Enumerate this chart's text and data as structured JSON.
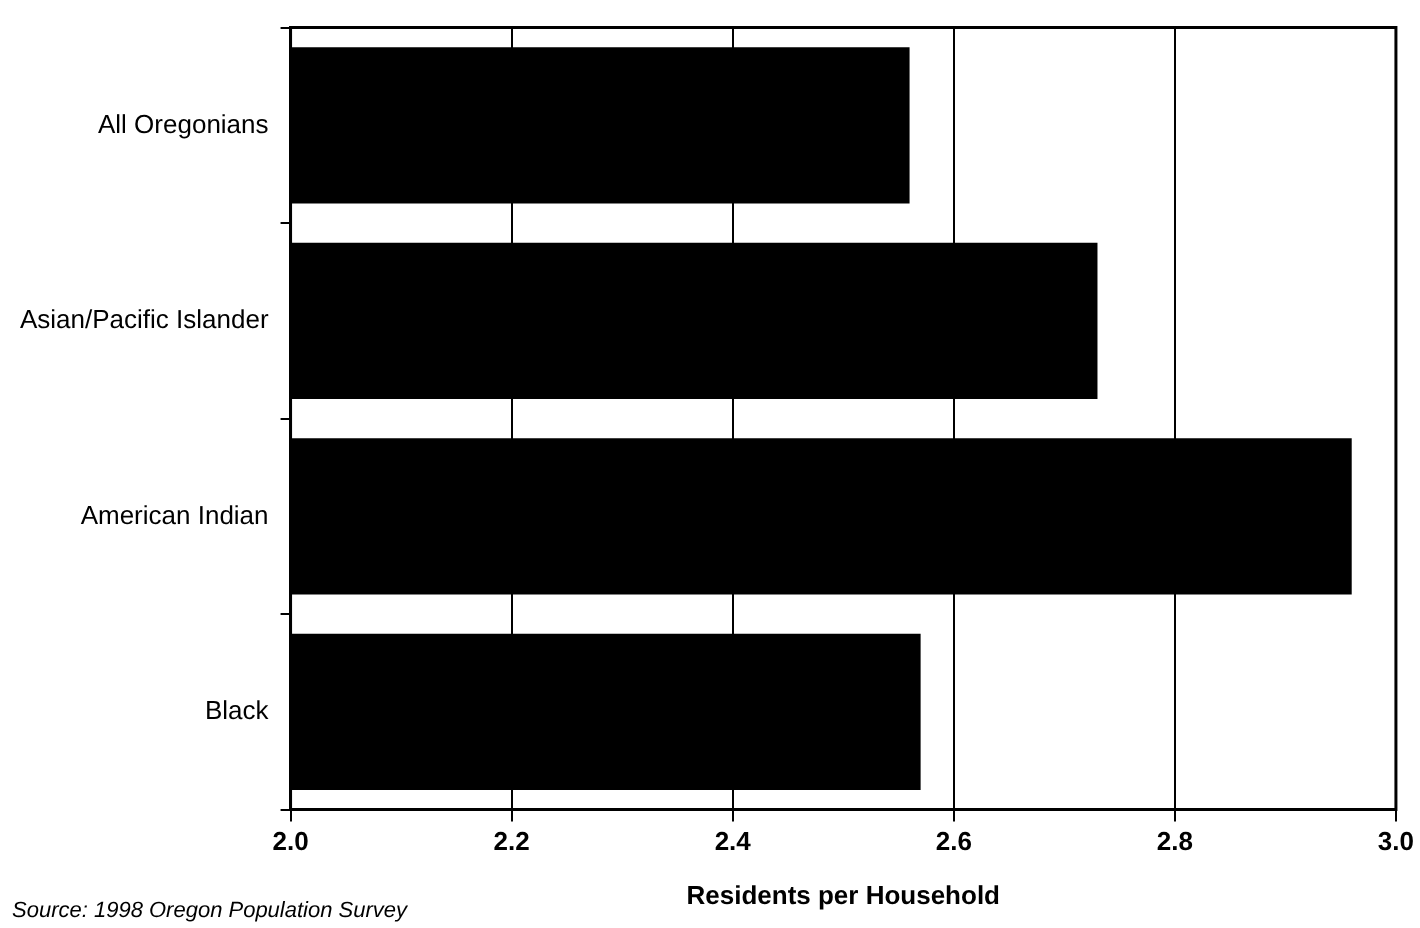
{
  "chart_data": {
    "type": "bar",
    "orientation": "horizontal",
    "categories": [
      "All Oregonians",
      "Asian/Pacific Islander",
      "American Indian",
      "Black"
    ],
    "values": [
      2.56,
      2.73,
      2.96,
      2.57
    ],
    "color": "#000000",
    "xlim": [
      2.0,
      3.0
    ],
    "xticks": [
      {
        "value": 2.0,
        "label": "2.0"
      },
      {
        "value": 2.2,
        "label": "2.2"
      },
      {
        "value": 2.4,
        "label": "2.4"
      },
      {
        "value": 2.6,
        "label": "2.6"
      },
      {
        "value": 2.8,
        "label": "2.8"
      },
      {
        "value": 3.0,
        "label": "3.0"
      }
    ],
    "xlabel": "Residents per Household",
    "grid": "x",
    "legend": false,
    "annotations": [
      "Source: 1998 Oregon Population Survey"
    ]
  }
}
